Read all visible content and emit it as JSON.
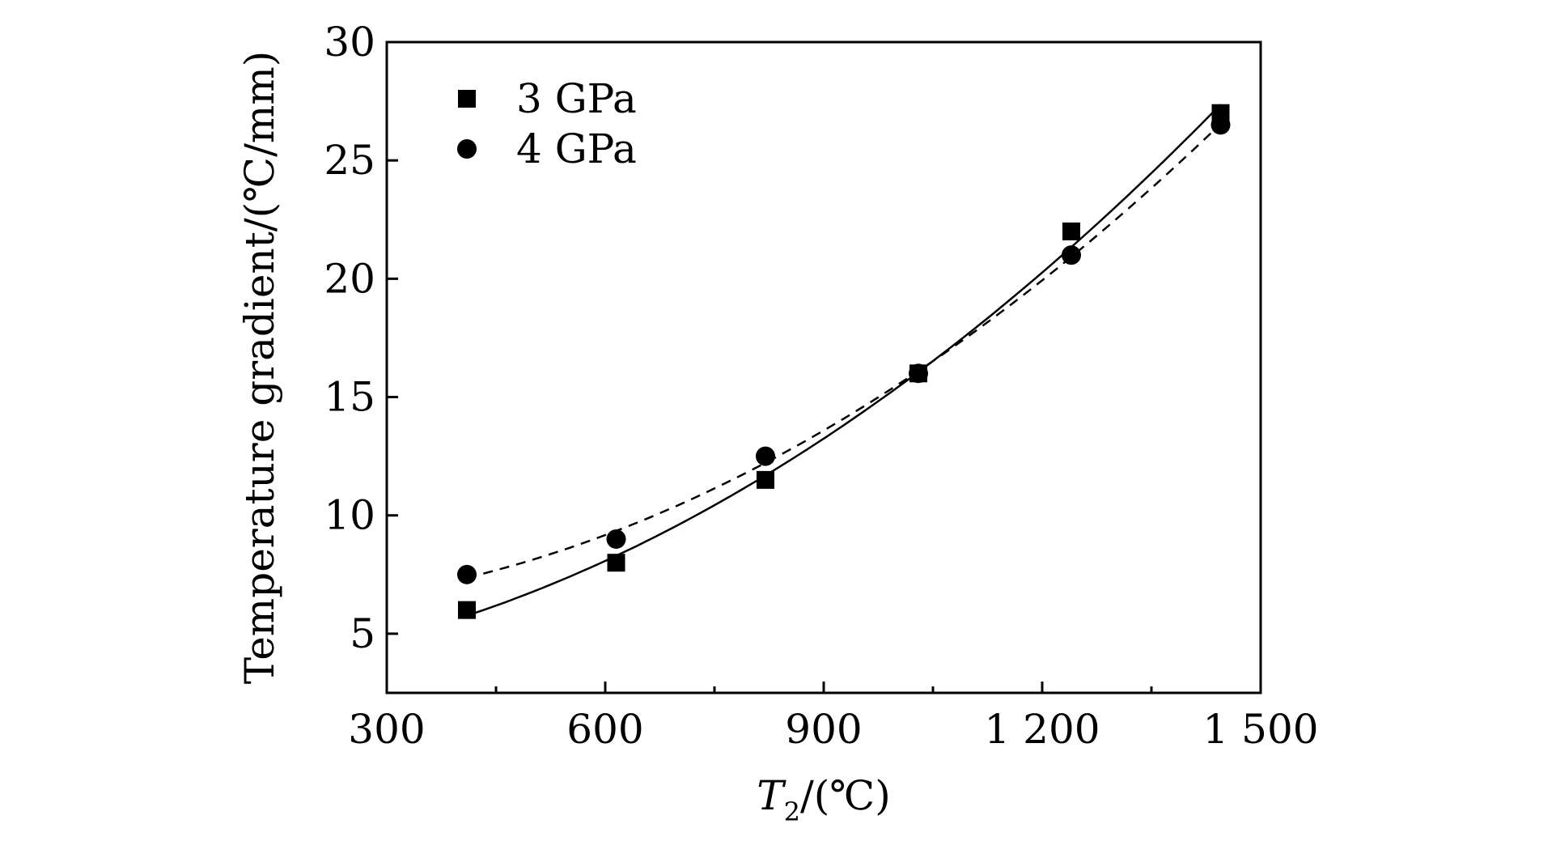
{
  "chart_data": {
    "type": "scatter",
    "title": "",
    "xlabel": "T2/(℃)",
    "xlabel_main": "T",
    "xlabel_sub": "2",
    "xlabel_rest": "/(℃)",
    "ylabel": "Temperature gradient/(℃/mm)",
    "xlim": [
      300,
      1500
    ],
    "ylim": [
      2.5,
      30
    ],
    "xticks": [
      300,
      600,
      900,
      1200,
      1500
    ],
    "xtick_labels": [
      "300",
      "600",
      "900",
      "1 200",
      "1 500"
    ],
    "xminor_ticks": [
      450,
      750,
      1050,
      1350
    ],
    "yticks": [
      5,
      10,
      15,
      20,
      25,
      30
    ],
    "ytick_labels": [
      "5",
      "10",
      "15",
      "20",
      "25",
      "30"
    ],
    "legend_position": "top-left",
    "series": [
      {
        "name": "3 GPa",
        "marker": "square",
        "line": "solid",
        "x": [
          410,
          615,
          820,
          1030,
          1240,
          1445
        ],
        "y": [
          6.0,
          8.0,
          11.5,
          16.0,
          22.0,
          27.0
        ]
      },
      {
        "name": "4 GPa",
        "marker": "circle",
        "line": "dashed",
        "x": [
          410,
          615,
          820,
          1030,
          1240,
          1445
        ],
        "y": [
          7.5,
          9.0,
          12.5,
          16.0,
          21.0,
          26.5
        ]
      }
    ]
  }
}
